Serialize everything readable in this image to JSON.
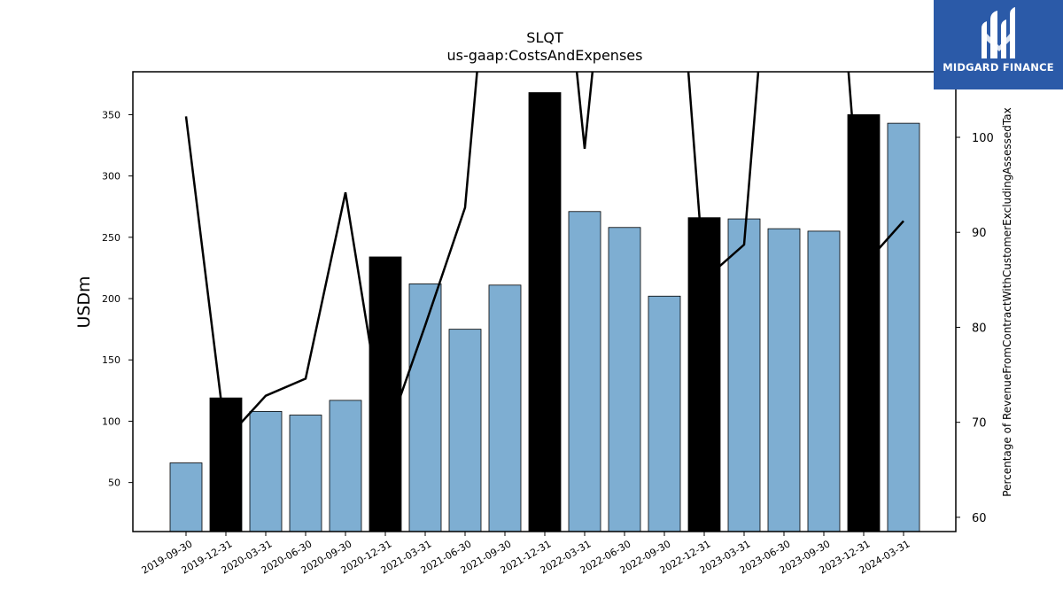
{
  "chart_data": {
    "type": "bar+line",
    "title": "SLQT",
    "subtitle": "us-gaap:CostsAndExpenses",
    "ylabel": "USDm",
    "y2label": "Percentage of RevenueFromContractWithCustomerExcludingAssessedTax",
    "ylim": [
      10,
      385
    ],
    "y2lim": [
      58.5,
      106.9
    ],
    "yticks": [
      50,
      100,
      150,
      200,
      250,
      300,
      350
    ],
    "y2ticks": [
      60,
      70,
      80,
      90,
      100
    ],
    "categories": [
      "2019-09-30",
      "2019-12-31",
      "2020-03-31",
      "2020-06-30",
      "2020-09-30",
      "2020-12-31",
      "2021-03-31",
      "2021-06-30",
      "2021-09-30",
      "2021-12-31",
      "2022-03-31",
      "2022-06-30",
      "2022-09-30",
      "2022-12-31",
      "2023-03-31",
      "2023-06-30",
      "2023-09-30",
      "2023-12-31",
      "2024-03-31"
    ],
    "series": [
      {
        "kind": "bar",
        "values": [
          66,
          119,
          108,
          105,
          117,
          234,
          212,
          175,
          211,
          368,
          271,
          258,
          202,
          266,
          265,
          257,
          255,
          350,
          343
        ],
        "highlight": [
          false,
          true,
          false,
          false,
          false,
          true,
          false,
          false,
          false,
          true,
          false,
          false,
          false,
          true,
          false,
          false,
          false,
          true,
          false
        ]
      },
      {
        "kind": "line",
        "axis": "right",
        "values": [
          102.2,
          68.2,
          72.8,
          74.6,
          94.2,
          68.2,
          80.2,
          92.6,
          140.0,
          140.0,
          98.8,
          140.0,
          140.0,
          85.0,
          88.7,
          140.0,
          140.0,
          86.5,
          91.2
        ]
      }
    ],
    "colors": {
      "bar": "#7eaed2",
      "bar_highlight": "#000000",
      "line": "#000000"
    },
    "grid": false
  },
  "logo": {
    "text": "MIDGARD FINANCE",
    "icon": "midgard-m-logo-icon",
    "background": "#2b5aa8"
  }
}
